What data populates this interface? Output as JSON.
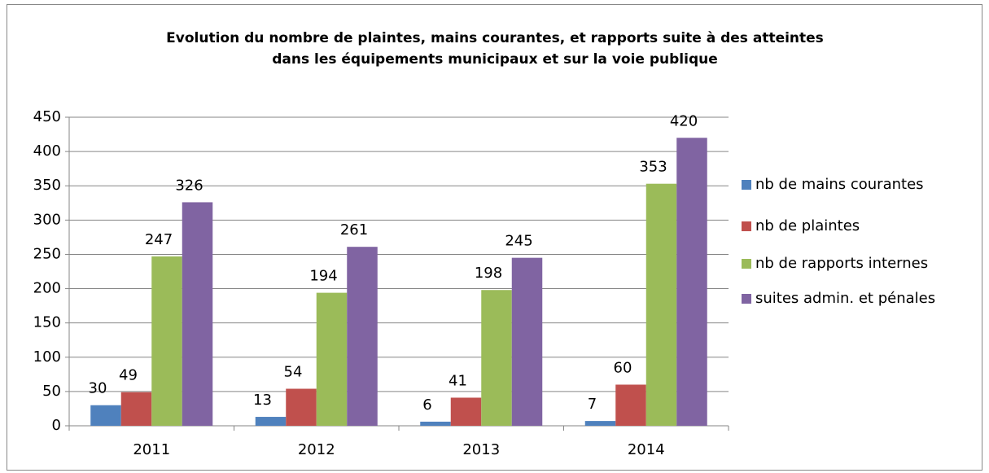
{
  "chart_data": {
    "type": "bar",
    "title": [
      "Evolution du nombre de plaintes, mains courantes, et rapports suite à des atteintes",
      "dans les équipements municipaux et sur la voie publique"
    ],
    "categories": [
      "2011",
      "2012",
      "2013",
      "2014"
    ],
    "series": [
      {
        "name": "nb de mains courantes",
        "color": "#4f81bd",
        "values": [
          30,
          13,
          6,
          7
        ]
      },
      {
        "name": "nb de plaintes",
        "color": "#c0504d",
        "values": [
          49,
          54,
          41,
          60
        ]
      },
      {
        "name": "nb de rapports internes",
        "color": "#9bbb59",
        "values": [
          247,
          194,
          198,
          353
        ]
      },
      {
        "name": "suites admin. et pénales",
        "color": "#8064a2",
        "values": [
          326,
          261,
          245,
          420
        ]
      }
    ],
    "ylim": [
      0,
      450
    ],
    "yticks": [
      0,
      50,
      100,
      150,
      200,
      250,
      300,
      350,
      400,
      450
    ],
    "grid": true,
    "legend": "right"
  }
}
